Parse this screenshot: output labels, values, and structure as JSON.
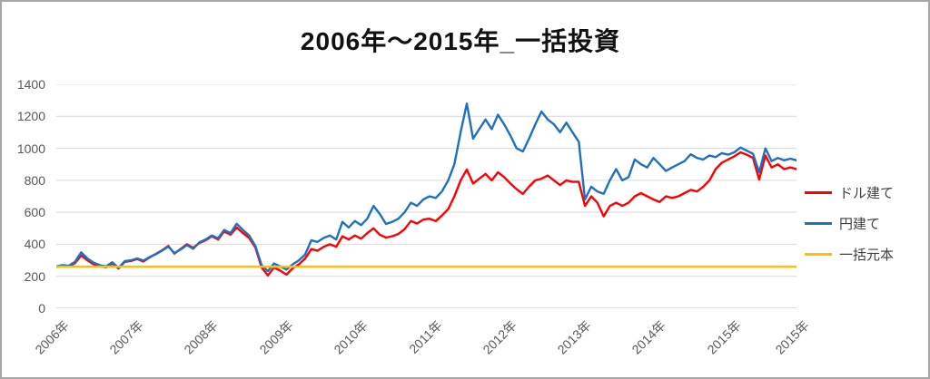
{
  "title": "2006年～2015年_一括投資",
  "colors": {
    "series_red": "#ff0000",
    "series_blue": "#1f70c1",
    "series_orange": "#ffc000",
    "gridline": "#d9d9d9",
    "axis_line": "#bfbfbf",
    "tick_text": "#595959",
    "legend_text": "#404040",
    "border": "#a6a6a6"
  },
  "legend": {
    "items": [
      {
        "label": "ドル建て",
        "color": "#ff0000"
      },
      {
        "label": "円建て",
        "color": "#1f70c1"
      },
      {
        "label": "一括元本",
        "color": "#ffc000"
      }
    ]
  },
  "chart_data": {
    "type": "line",
    "title": "2006年～2015年_一括投資",
    "xlabel": "",
    "ylabel": "",
    "ylim": [
      0,
      1400
    ],
    "yticks": [
      0,
      200,
      400,
      600,
      800,
      1000,
      1200,
      1400
    ],
    "grid": "horizontal",
    "legend_position": "right",
    "x_unit": "monthly points, Jan 2006 - Dec 2015",
    "x_tick_labels": [
      "2006年",
      "2007年",
      "2008年",
      "2009年",
      "2010年",
      "2011年",
      "2012年",
      "2013年",
      "2014年",
      "2015年",
      "2015年"
    ],
    "x_tick_indices": [
      0,
      12,
      24,
      36,
      48,
      60,
      72,
      84,
      96,
      108,
      119
    ],
    "series": [
      {
        "name": "ドル建て",
        "color": "#ff0000",
        "values": [
          258,
          264,
          260,
          282,
          330,
          300,
          275,
          262,
          256,
          280,
          248,
          290,
          296,
          308,
          292,
          318,
          340,
          362,
          390,
          342,
          372,
          400,
          378,
          408,
          425,
          450,
          430,
          480,
          460,
          505,
          470,
          440,
          380,
          255,
          205,
          255,
          235,
          210,
          250,
          275,
          310,
          370,
          360,
          385,
          400,
          385,
          450,
          430,
          455,
          435,
          470,
          500,
          460,
          442,
          450,
          465,
          495,
          545,
          530,
          555,
          560,
          545,
          580,
          620,
          700,
          800,
          867,
          780,
          810,
          840,
          800,
          850,
          820,
          780,
          745,
          715,
          760,
          800,
          810,
          830,
          800,
          770,
          800,
          790,
          790,
          640,
          700,
          660,
          575,
          640,
          660,
          640,
          660,
          700,
          720,
          700,
          680,
          665,
          700,
          690,
          700,
          720,
          740,
          730,
          760,
          800,
          870,
          910,
          930,
          950,
          975,
          960,
          940,
          805,
          955,
          880,
          900,
          870,
          880,
          870
        ]
      },
      {
        "name": "円建て",
        "color": "#1f70c1",
        "values": [
          262,
          270,
          266,
          290,
          350,
          312,
          285,
          270,
          262,
          288,
          252,
          295,
          300,
          312,
          298,
          320,
          338,
          360,
          385,
          345,
          368,
          395,
          372,
          412,
          430,
          455,
          438,
          490,
          470,
          528,
          490,
          455,
          390,
          270,
          232,
          280,
          262,
          242,
          275,
          300,
          335,
          425,
          415,
          440,
          455,
          430,
          540,
          505,
          545,
          520,
          560,
          640,
          590,
          527,
          540,
          560,
          600,
          660,
          640,
          680,
          700,
          690,
          730,
          800,
          900,
          1100,
          1280,
          1060,
          1120,
          1180,
          1120,
          1210,
          1150,
          1080,
          1000,
          980,
          1060,
          1150,
          1230,
          1180,
          1150,
          1100,
          1160,
          1100,
          1040,
          680,
          760,
          730,
          716,
          800,
          870,
          800,
          820,
          930,
          900,
          880,
          940,
          900,
          858,
          880,
          900,
          920,
          963,
          940,
          930,
          955,
          945,
          970,
          960,
          975,
          1005,
          985,
          965,
          850,
          1000,
          920,
          940,
          925,
          935,
          925
        ]
      },
      {
        "name": "一括元本",
        "color": "#ffc000",
        "constant": 260
      }
    ]
  }
}
